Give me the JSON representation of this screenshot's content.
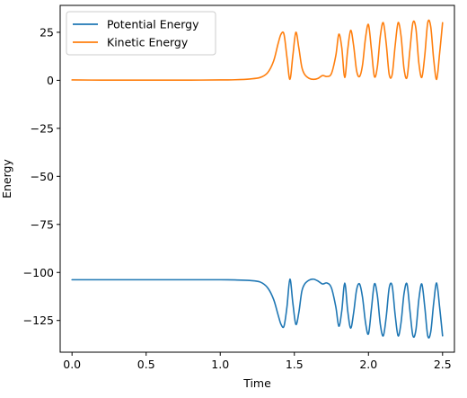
{
  "chart_data": {
    "type": "line",
    "title": "",
    "xlabel": "Time",
    "ylabel": "Energy",
    "xlim": [
      -0.08,
      2.58
    ],
    "ylim": [
      -141.5,
      39.0
    ],
    "x_ticks": [
      0.0,
      0.5,
      1.0,
      1.5,
      2.0,
      2.5
    ],
    "x_tick_labels": [
      "0.0",
      "0.5",
      "1.0",
      "1.5",
      "2.0",
      "2.5"
    ],
    "y_ticks": [
      25,
      0,
      -25,
      -50,
      -75,
      -100,
      -125
    ],
    "y_tick_labels": [
      "25",
      "0",
      "−25",
      "−50",
      "−75",
      "−100",
      "−125"
    ],
    "grid": false,
    "legend_position": "top-left",
    "series": [
      {
        "name": "Potential Energy",
        "color": "#1f77b4",
        "x": [
          0.0,
          0.2,
          0.4,
          0.6,
          0.8,
          1.0,
          1.1,
          1.2,
          1.27,
          1.32,
          1.36,
          1.39,
          1.41,
          1.43,
          1.45,
          1.47,
          1.49,
          1.51,
          1.53,
          1.55,
          1.57,
          1.6,
          1.63,
          1.66,
          1.69,
          1.72,
          1.75,
          1.78,
          1.8,
          1.82,
          1.84,
          1.86,
          1.88,
          1.9,
          1.92,
          1.94,
          1.96,
          1.98,
          2.0,
          2.02,
          2.04,
          2.06,
          2.08,
          2.1,
          2.12,
          2.14,
          2.16,
          2.18,
          2.2,
          2.22,
          2.24,
          2.26,
          2.28,
          2.3,
          2.32,
          2.34,
          2.36,
          2.38,
          2.4,
          2.42,
          2.44,
          2.46,
          2.48,
          2.5
        ],
        "y": [
          -103.8,
          -103.8,
          -103.8,
          -103.8,
          -103.8,
          -103.8,
          -103.9,
          -104.2,
          -105.0,
          -108.0,
          -114.0,
          -122.0,
          -127.0,
          -128.0,
          -118.0,
          -103.5,
          -116.0,
          -127.0,
          -121.0,
          -110.0,
          -106.0,
          -104.0,
          -103.5,
          -104.5,
          -106.0,
          -105.5,
          -108.0,
          -118.0,
          -128.0,
          -120.0,
          -105.5,
          -120.0,
          -129.0,
          -121.0,
          -109.0,
          -106.0,
          -113.0,
          -126.0,
          -132.0,
          -119.0,
          -106.0,
          -112.0,
          -127.0,
          -133.0,
          -123.0,
          -108.0,
          -107.0,
          -122.0,
          -133.0,
          -126.0,
          -111.0,
          -106.0,
          -120.0,
          -133.0,
          -130.0,
          -114.0,
          -106.0,
          -118.0,
          -133.0,
          -131.0,
          -116.0,
          -105.5,
          -118.0,
          -133.0
        ]
      },
      {
        "name": "Kinetic Energy",
        "color": "#ff7f0e",
        "x": [
          0.0,
          0.2,
          0.4,
          0.6,
          0.8,
          1.0,
          1.1,
          1.2,
          1.27,
          1.32,
          1.36,
          1.39,
          1.41,
          1.43,
          1.45,
          1.47,
          1.49,
          1.51,
          1.53,
          1.55,
          1.57,
          1.6,
          1.63,
          1.66,
          1.69,
          1.72,
          1.75,
          1.78,
          1.8,
          1.82,
          1.84,
          1.86,
          1.88,
          1.9,
          1.92,
          1.94,
          1.96,
          1.98,
          2.0,
          2.02,
          2.04,
          2.06,
          2.08,
          2.1,
          2.12,
          2.14,
          2.16,
          2.18,
          2.2,
          2.22,
          2.24,
          2.26,
          2.28,
          2.3,
          2.32,
          2.34,
          2.36,
          2.38,
          2.4,
          2.42,
          2.44,
          2.46,
          2.48,
          2.5
        ],
        "y": [
          0.2,
          0.1,
          0.1,
          0.1,
          0.1,
          0.2,
          0.3,
          0.7,
          1.5,
          4.0,
          10.0,
          19.0,
          24.0,
          24.0,
          12.0,
          0.5,
          13.0,
          25.0,
          17.0,
          7.0,
          3.0,
          1.0,
          0.5,
          1.0,
          2.5,
          2.0,
          3.5,
          13.0,
          24.0,
          17.0,
          1.5,
          16.0,
          26.0,
          18.0,
          5.0,
          2.0,
          8.0,
          22.0,
          29.0,
          16.0,
          2.0,
          7.0,
          23.0,
          30.0,
          19.0,
          3.0,
          3.0,
          18.0,
          30.0,
          23.0,
          6.0,
          1.5,
          16.0,
          30.0,
          27.0,
          9.0,
          1.5,
          13.0,
          30.0,
          28.0,
          11.0,
          0.5,
          14.0,
          30.0
        ]
      }
    ]
  }
}
